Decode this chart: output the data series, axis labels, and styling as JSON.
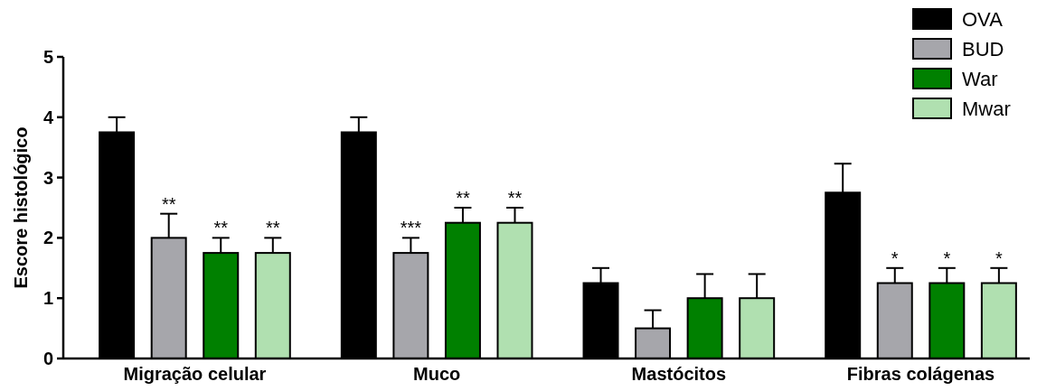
{
  "chart_data": {
    "type": "bar",
    "ylabel": "Escore histológico",
    "categories": [
      "Migração celular",
      "Muco",
      "Mastócitos",
      "Fibras colágenas"
    ],
    "ylim": [
      0,
      5
    ],
    "yticks": [
      0,
      1,
      2,
      3,
      4,
      5
    ],
    "legend": "top right",
    "grid": false,
    "series": [
      {
        "name": "OVA",
        "color": "#000000",
        "values": [
          3.75,
          3.75,
          1.25,
          2.75
        ],
        "errors": [
          [
            3.75,
            4.0
          ],
          [
            3.75,
            4.0
          ],
          [
            1.25,
            1.5
          ],
          [
            2.75,
            3.23
          ]
        ],
        "value_labels": [
          null,
          null,
          null,
          null
        ]
      },
      {
        "name": "BUD",
        "color": "#a6a6ab",
        "values": [
          2.0,
          1.75,
          0.5,
          1.25
        ],
        "errors": [
          [
            2.0,
            2.4
          ],
          [
            1.75,
            2.0
          ],
          [
            0.5,
            0.8
          ],
          [
            1.25,
            1.5
          ]
        ],
        "value_labels": [
          "**",
          "***",
          null,
          "*"
        ]
      },
      {
        "name": "War",
        "color": "#008000",
        "values": [
          1.75,
          2.25,
          1.0,
          1.25
        ],
        "errors": [
          [
            1.75,
            2.0
          ],
          [
            2.25,
            2.5
          ],
          [
            1.0,
            1.4
          ],
          [
            1.25,
            1.5
          ]
        ],
        "value_labels": [
          "**",
          "**",
          null,
          "*"
        ]
      },
      {
        "name": "Mwar",
        "color": "#b0e0b0",
        "values": [
          1.75,
          2.25,
          1.0,
          1.25
        ],
        "errors": [
          [
            1.75,
            2.0
          ],
          [
            2.25,
            2.5
          ],
          [
            1.0,
            1.4
          ],
          [
            1.25,
            1.5
          ]
        ],
        "value_labels": [
          "**",
          "**",
          null,
          "*"
        ]
      }
    ]
  }
}
